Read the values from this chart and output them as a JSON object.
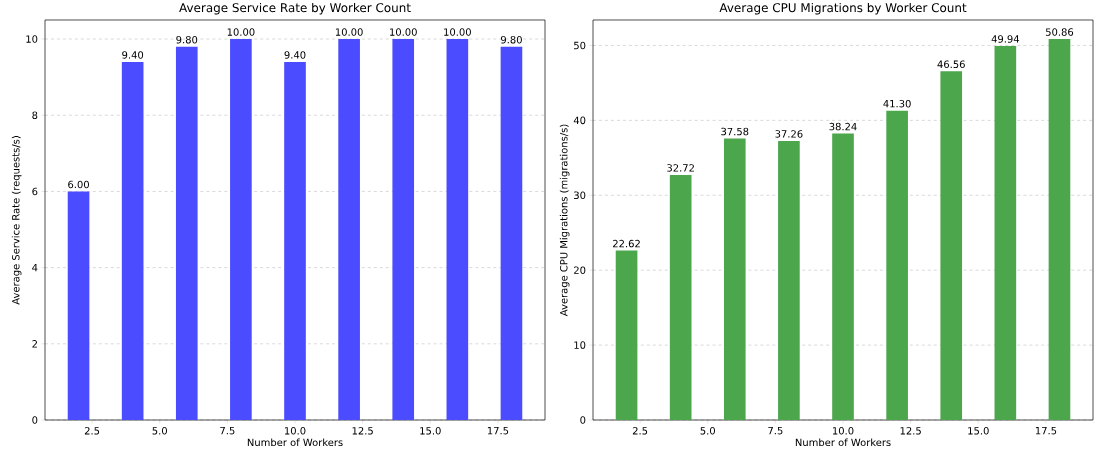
{
  "chart_data": [
    {
      "type": "bar",
      "title": "Average Service Rate by Worker Count",
      "xlabel": "Number of Workers",
      "ylabel": "Average Service Rate (requests/s)",
      "x": [
        2,
        4,
        6,
        8,
        10,
        12,
        14,
        16,
        18
      ],
      "values": [
        6.0,
        9.4,
        9.8,
        10.0,
        9.4,
        10.0,
        10.0,
        10.0,
        9.8
      ],
      "value_labels": [
        "6.00",
        "9.40",
        "9.80",
        "10.00",
        "9.40",
        "10.00",
        "10.00",
        "10.00",
        "9.80"
      ],
      "color": "#4b4bff",
      "xlim": [
        0.76,
        19.24
      ],
      "ylim": [
        0,
        10.5
      ],
      "xticks": [
        2.5,
        {
          "value": 5,
          "label": "5.0"
        },
        7.5,
        {
          "value": 10,
          "label": "10.0"
        },
        12.5,
        {
          "value": 15,
          "label": "15.0"
        },
        17.5
      ],
      "yticks": [
        0,
        2,
        4,
        6,
        8,
        10
      ],
      "grid": "y"
    },
    {
      "type": "bar",
      "title": "Average CPU Migrations by Worker Count",
      "xlabel": "Number of Workers",
      "ylabel": "Average CPU Migrations (migrations/s)",
      "x": [
        2,
        4,
        6,
        8,
        10,
        12,
        14,
        16,
        18
      ],
      "values": [
        22.62,
        32.72,
        37.58,
        37.26,
        38.24,
        41.3,
        46.56,
        49.94,
        50.86
      ],
      "value_labels": [
        "22.62",
        "32.72",
        "37.58",
        "37.26",
        "38.24",
        "41.30",
        "46.56",
        "49.94",
        "50.86"
      ],
      "color": "#4ca64c",
      "xlim": [
        0.76,
        19.24
      ],
      "ylim": [
        0,
        53.4
      ],
      "xticks": [
        2.5,
        {
          "value": 5,
          "label": "5.0"
        },
        7.5,
        {
          "value": 10,
          "label": "10.0"
        },
        12.5,
        {
          "value": 15,
          "label": "15.0"
        },
        17.5
      ],
      "yticks": [
        0,
        10,
        20,
        30,
        40,
        50
      ],
      "grid": "y"
    }
  ]
}
